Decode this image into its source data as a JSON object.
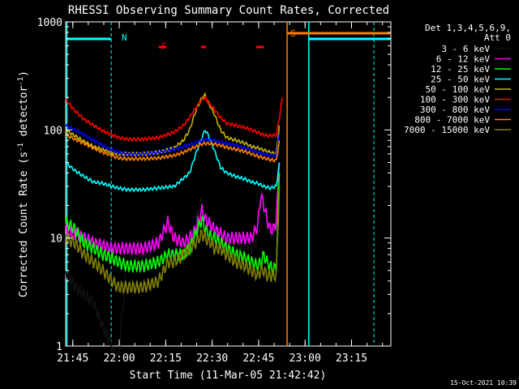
{
  "chart_data": {
    "type": "line",
    "title": "RHESSI Observing Summary Count Rates, Corrected",
    "xlabel": "Start Time (11-Mar-05 21:42:42)",
    "ylabel": "Corrected Count Rate (s",
    "ylabel_sup1": "-1",
    "ylabel_mid": " detector",
    "ylabel_sup2": "-1",
    "ylabel_end": ")",
    "yscale": "log",
    "xlim_minutes": [
      0,
      105
    ],
    "ylim": [
      1,
      1000
    ],
    "x_tick_labels": [
      "21:45",
      "22:00",
      "22:15",
      "22:30",
      "22:45",
      "23:00",
      "23:15"
    ],
    "x_tick_minutes": [
      2.3,
      17.3,
      32.3,
      47.3,
      62.3,
      77.3,
      92.3
    ],
    "y_tick_labels": [
      "1",
      "10",
      "100",
      "1000"
    ],
    "y_tick_values": [
      1,
      10,
      100,
      1000
    ],
    "legend_header": [
      "Det 1,3,4,5,6,9,",
      "Att 0"
    ],
    "legend_position": "right",
    "timestamp": "15-Oct-2021 10:39",
    "flags": {
      "N_label": "N",
      "F_label": "F",
      "S_label": "S",
      "night_color": "#00ffff",
      "flare_color": "#ff0000",
      "saa_color": "#ff8000"
    },
    "series": [
      {
        "name": "3 - 6 keV",
        "color": "#000000",
        "x": [
          0,
          3,
          6,
          9,
          12,
          15,
          16,
          17,
          20,
          25,
          30,
          33,
          35,
          38,
          40,
          42,
          44,
          45,
          47,
          48,
          50,
          52,
          55,
          58,
          60,
          62,
          63,
          64,
          65,
          66,
          67,
          68,
          69
        ],
        "y": [
          5,
          3.5,
          3,
          2.5,
          1.5,
          1.0,
          0.8,
          0.8,
          7,
          7,
          9,
          15,
          9,
          9,
          8,
          15,
          22,
          15,
          13,
          12,
          9,
          8,
          8,
          9,
          8,
          10,
          18,
          25,
          14,
          12,
          9,
          20,
          50
        ]
      },
      {
        "name": "6 - 12 keV",
        "color": "#ff00ff",
        "x": [
          0,
          3,
          6,
          9,
          12,
          15,
          17,
          20,
          25,
          30,
          33,
          35,
          38,
          40,
          42,
          44,
          45,
          47,
          48,
          50,
          52,
          55,
          58,
          60,
          62,
          63,
          64,
          65,
          66,
          67,
          68,
          69
        ],
        "y": [
          12,
          11,
          10,
          9,
          8.5,
          8,
          8,
          8,
          8,
          9,
          14,
          10,
          9,
          10,
          12,
          18,
          15,
          13,
          12,
          11,
          10,
          10,
          10,
          10,
          13,
          25,
          20,
          15,
          12,
          12,
          14,
          50
        ]
      },
      {
        "name": "12 - 25 keV",
        "color": "#00ff00",
        "x": [
          0,
          3,
          6,
          9,
          12,
          15,
          17,
          20,
          25,
          30,
          33,
          35,
          38,
          40,
          42,
          44,
          45,
          47,
          48,
          50,
          52,
          55,
          58,
          60,
          62,
          63,
          64,
          65,
          66,
          67,
          68,
          69
        ],
        "y": [
          14,
          12,
          9,
          8,
          7,
          6.5,
          6,
          5.5,
          5.5,
          6,
          7,
          7,
          7,
          8,
          11,
          15,
          12,
          10,
          10,
          9,
          8,
          7,
          6.5,
          6,
          5.5,
          6,
          7,
          6,
          5.5,
          5,
          5.5,
          40
        ]
      },
      {
        "name": "25 - 50 keV",
        "color": "#00ffff",
        "x": [
          0,
          3,
          6,
          9,
          12,
          15,
          17,
          20,
          25,
          30,
          35,
          40,
          42,
          44,
          45,
          46,
          48,
          50,
          52,
          55,
          58,
          60,
          62,
          64,
          66,
          68,
          69
        ],
        "y": [
          50,
          42,
          37,
          33,
          32,
          30,
          29,
          28,
          28,
          29,
          30,
          40,
          60,
          85,
          100,
          90,
          65,
          45,
          40,
          37,
          35,
          33,
          32,
          30,
          29,
          30,
          50
        ]
      },
      {
        "name": "50 - 100 keV",
        "color": "#c8b400",
        "x": [
          0,
          3,
          6,
          9,
          12,
          15,
          17,
          20,
          25,
          30,
          35,
          38,
          40,
          42,
          44,
          45,
          46,
          48,
          50,
          52,
          55,
          58,
          60,
          62,
          64,
          66,
          68,
          69
        ],
        "y": [
          100,
          88,
          78,
          70,
          66,
          62,
          60,
          60,
          60,
          62,
          68,
          80,
          100,
          150,
          200,
          210,
          180,
          140,
          100,
          85,
          80,
          75,
          70,
          68,
          65,
          62,
          60,
          110
        ]
      },
      {
        "name": "100 - 300 keV",
        "color": "#ff0000",
        "x": [
          0,
          3,
          6,
          9,
          12,
          15,
          17,
          20,
          25,
          30,
          35,
          38,
          40,
          42,
          44,
          45,
          46,
          48,
          50,
          52,
          55,
          58,
          60,
          62,
          64,
          66,
          68,
          69,
          70
        ],
        "y": [
          190,
          150,
          125,
          110,
          98,
          90,
          85,
          82,
          82,
          85,
          95,
          110,
          130,
          160,
          190,
          200,
          180,
          155,
          130,
          115,
          110,
          105,
          100,
          95,
          90,
          88,
          90,
          130,
          200
        ]
      },
      {
        "name": "300 - 800 keV",
        "color": "#0000ff",
        "x": [
          0,
          3,
          6,
          9,
          12,
          15,
          17,
          20,
          25,
          30,
          35,
          38,
          40,
          42,
          44,
          45,
          46,
          48,
          50,
          52,
          55,
          58,
          60,
          62,
          64,
          66,
          68,
          69
        ],
        "y": [
          110,
          100,
          90,
          80,
          72,
          65,
          62,
          60,
          60,
          62,
          66,
          70,
          73,
          76,
          80,
          82,
          82,
          80,
          77,
          75,
          72,
          68,
          65,
          62,
          60,
          58,
          58,
          90
        ]
      },
      {
        "name": "800 - 7000 keV",
        "color": "#ff8000",
        "x": [
          0,
          3,
          6,
          9,
          12,
          15,
          17,
          20,
          25,
          30,
          35,
          38,
          40,
          42,
          44,
          45,
          46,
          48,
          50,
          52,
          55,
          58,
          60,
          62,
          64,
          66,
          68,
          69
        ],
        "y": [
          90,
          82,
          75,
          68,
          62,
          58,
          55,
          54,
          54,
          55,
          58,
          62,
          66,
          70,
          74,
          75,
          75,
          74,
          72,
          69,
          66,
          63,
          60,
          57,
          55,
          53,
          52,
          80
        ]
      },
      {
        "name": "7000 - 15000 keV",
        "color": "#808000",
        "x": [
          0,
          3,
          6,
          9,
          12,
          15,
          17,
          20,
          25,
          30,
          33,
          35,
          38,
          40,
          42,
          44,
          45,
          47,
          48,
          50,
          52,
          55,
          58,
          60,
          62,
          63,
          64,
          65,
          66,
          67,
          68,
          69
        ],
        "y": [
          10,
          9,
          7,
          6,
          5,
          4,
          3.5,
          3.5,
          3.5,
          4,
          6,
          6,
          7,
          8,
          9,
          11,
          10,
          9,
          8,
          8,
          7,
          6,
          5.5,
          5,
          4.5,
          5,
          5,
          4.5,
          4.5,
          4.5,
          4.5,
          30
        ]
      }
    ],
    "night_bars": [
      [
        0,
        14.7
      ],
      [
        78.5,
        105
      ]
    ],
    "flare_bars": [
      [
        30,
        32.5
      ],
      [
        43.7,
        45.3
      ],
      [
        61.5,
        64
      ]
    ],
    "saa_bars": [
      [
        71.5,
        105
      ]
    ],
    "night_lines": [
      0.4,
      14.7,
      78.5,
      99.5
    ],
    "saa_line": 71.5
  }
}
